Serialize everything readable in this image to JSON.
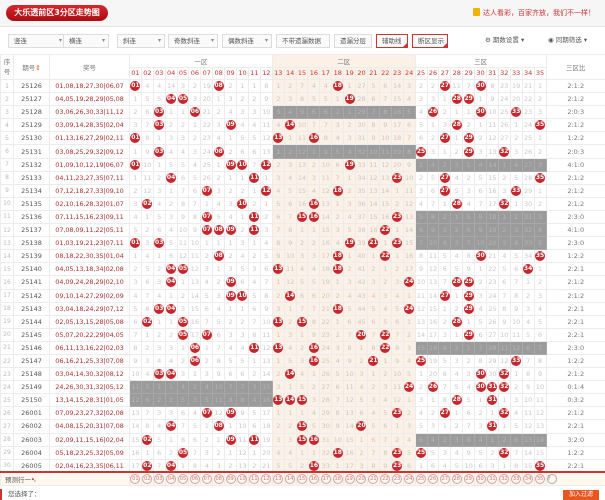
{
  "header": {
    "title": "大乐透前区3分区走势图",
    "slogan": "达人看彩，百家齐放，我们不一样！"
  },
  "toolbar": {
    "selects": [
      "竖连",
      "横连",
      "斜连",
      "奇数斜连",
      "偶数斜连"
    ],
    "buttons": [
      "不带遗漏数据",
      "遗漏分层",
      "辅助线",
      "断区显示"
    ],
    "period_settings": "期数设置",
    "same_period_filter": "同期筛选"
  },
  "table": {
    "headers": {
      "seq": "序号",
      "issue": "期号",
      "numbers": "奖号",
      "zone1": "一区",
      "zone2": "二区",
      "zone3": "三区",
      "ratio": "三区比"
    },
    "zones": {
      "zone1": [
        1,
        12
      ],
      "zone2": [
        13,
        24
      ],
      "zone3": [
        25,
        35
      ]
    },
    "first_row_omission": [
      0,
      4,
      4,
      14,
      3,
      2,
      19,
      0,
      2,
      1,
      1,
      8,
      1,
      2,
      7,
      4,
      4,
      0,
      1,
      27,
      5,
      6,
      14,
      3,
      2,
      2,
      0,
      11,
      7,
      0,
      8,
      23,
      19,
      21,
      1
    ],
    "rows": [
      {
        "seq": "1",
        "issue": "25126",
        "front": [
          1,
          8,
          18,
          27,
          30
        ],
        "back": "06,07",
        "ratio": "2:1:2"
      },
      {
        "seq": "2",
        "issue": "25127",
        "front": [
          4,
          5,
          19,
          28,
          29
        ],
        "back": "05,08",
        "ratio": "2:1:2"
      },
      {
        "seq": "3",
        "issue": "25128",
        "front": [
          3,
          6,
          26,
          30,
          33
        ],
        "back": "11,12",
        "ratio": "2:0:3"
      },
      {
        "seq": "4",
        "issue": "25129",
        "front": [
          3,
          9,
          14,
          28,
          35
        ],
        "back": "02,04",
        "ratio": "2:1:2"
      },
      {
        "seq": "5",
        "issue": "25130",
        "front": [
          1,
          13,
          16,
          27,
          29
        ],
        "back": "02,11",
        "ratio": "1:2:2"
      },
      {
        "seq": "6",
        "issue": "25131",
        "front": [
          3,
          8,
          25,
          29,
          32
        ],
        "back": "09,12",
        "ratio": "2:0:3"
      },
      {
        "seq": "7",
        "issue": "25132",
        "front": [
          1,
          9,
          10,
          12,
          19
        ],
        "back": "06,07",
        "ratio": "4:1:0"
      },
      {
        "seq": "8",
        "issue": "25133",
        "front": [
          4,
          11,
          23,
          27,
          35
        ],
        "back": "07,11",
        "ratio": "2:1:2"
      },
      {
        "seq": "9",
        "issue": "25134",
        "front": [
          7,
          12,
          18,
          27,
          33
        ],
        "back": "09,10",
        "ratio": "2:1:2"
      },
      {
        "seq": "10",
        "issue": "25135",
        "front": [
          2,
          10,
          16,
          28,
          32
        ],
        "back": "01,07",
        "ratio": "2:1:2"
      },
      {
        "seq": "11",
        "issue": "25136",
        "front": [
          7,
          11,
          15,
          16,
          23
        ],
        "back": "09,11",
        "ratio": "2:3:0"
      },
      {
        "seq": "12",
        "issue": "25137",
        "front": [
          7,
          8,
          9,
          11,
          22
        ],
        "back": "05,11",
        "ratio": "4:1:0"
      },
      {
        "seq": "13",
        "issue": "25138",
        "front": [
          1,
          3,
          19,
          21,
          23
        ],
        "back": "07,11",
        "ratio": "2:3:0"
      },
      {
        "seq": "14",
        "issue": "25139",
        "front": [
          8,
          18,
          22,
          30,
          35
        ],
        "back": "01,04",
        "ratio": "1:2:2"
      },
      {
        "seq": "15",
        "issue": "25140",
        "front": [
          4,
          5,
          13,
          18,
          34
        ],
        "back": "02,08",
        "ratio": "2:2:1"
      },
      {
        "seq": "16",
        "issue": "25141",
        "front": [
          4,
          9,
          24,
          28,
          29
        ],
        "back": "02,10",
        "ratio": "2:1:2"
      },
      {
        "seq": "17",
        "issue": "25142",
        "front": [
          9,
          10,
          14,
          27,
          29
        ],
        "back": "02,09",
        "ratio": "2:1:2"
      },
      {
        "seq": "18",
        "issue": "25143",
        "front": [
          3,
          4,
          18,
          24,
          29
        ],
        "back": "07,12",
        "ratio": "2:2:1"
      },
      {
        "seq": "19",
        "issue": "25144",
        "front": [
          2,
          5,
          13,
          15,
          28
        ],
        "back": "05,08",
        "ratio": "2:2:1"
      },
      {
        "seq": "20",
        "issue": "25145",
        "front": [
          5,
          7,
          20,
          22,
          29
        ],
        "back": "04,05",
        "ratio": "2:2:1"
      },
      {
        "seq": "21",
        "issue": "25146",
        "front": [
          6,
          11,
          13,
          16,
          22
        ],
        "back": "02,03",
        "ratio": "2:3:0"
      },
      {
        "seq": "22",
        "issue": "25147",
        "front": [
          6,
          16,
          21,
          25,
          33
        ],
        "back": "07,08",
        "ratio": "1:2:2"
      },
      {
        "seq": "23",
        "issue": "25148",
        "front": [
          3,
          4,
          14,
          30,
          32
        ],
        "back": "08,12",
        "ratio": "2:1:2"
      },
      {
        "seq": "24",
        "issue": "25149",
        "front": [
          24,
          26,
          30,
          31,
          32
        ],
        "back": "05,12",
        "ratio": "0:1:4"
      },
      {
        "seq": "25",
        "issue": "25150",
        "front": [
          13,
          14,
          15,
          28,
          31
        ],
        "back": "01,05",
        "ratio": "0:3:2"
      },
      {
        "seq": "26",
        "issue": "26001",
        "front": [
          7,
          9,
          23,
          27,
          32
        ],
        "back": "02,08",
        "ratio": "2:1:2"
      },
      {
        "seq": "27",
        "issue": "26002",
        "front": [
          4,
          8,
          15,
          20,
          31
        ],
        "back": "07,08",
        "ratio": "2:2:1"
      },
      {
        "seq": "28",
        "issue": "26003",
        "front": [
          2,
          9,
          11,
          15,
          16
        ],
        "back": "02,04",
        "ratio": "3:2:0"
      },
      {
        "seq": "29",
        "issue": "26004",
        "front": [
          5,
          18,
          23,
          25,
          32
        ],
        "back": "05,09",
        "ratio": "1:2:2"
      },
      {
        "seq": "30",
        "issue": "26005",
        "front": [
          2,
          4,
          16,
          23,
          35
        ],
        "back": "06,11",
        "ratio": "2:2:1"
      }
    ]
  },
  "prediction": {
    "label": "预测行一",
    "icon": "help-icon"
  },
  "footer": {
    "selected_label": "您选择了：",
    "add_filter": "加入过滤"
  },
  "colors": {
    "accent": "#c4272c",
    "zone2_bg": "#fbf1e6",
    "break_zone": "#9b9b9b",
    "button": "#e8551f"
  }
}
